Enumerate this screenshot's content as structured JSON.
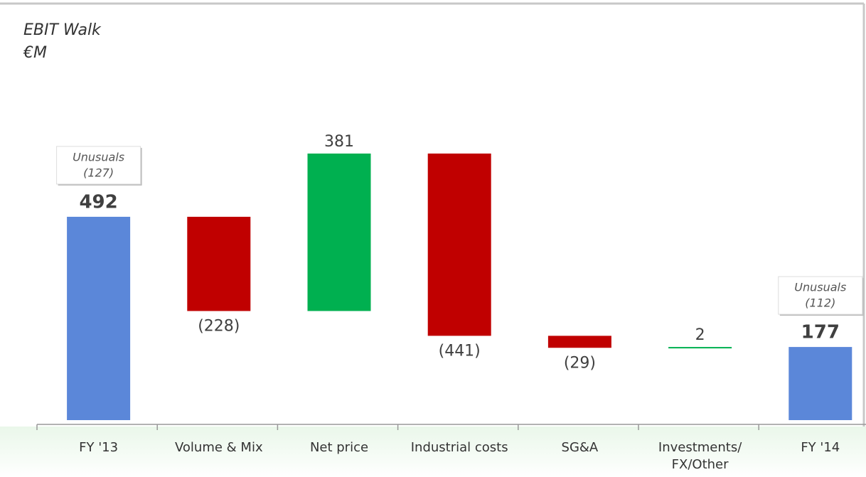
{
  "chart_data": {
    "type": "waterfall",
    "title": "EBIT Walk",
    "subtitle": "€M",
    "categories": [
      "FY '13",
      "Volume & Mix",
      "Net price",
      "Industrial costs",
      "SG&A",
      "Investments/ FX/Other",
      "FY '14"
    ],
    "values": [
      492,
      -228,
      381,
      -441,
      -29,
      2,
      177
    ],
    "value_labels": [
      "492",
      "(228)",
      "381",
      "(441)",
      "(29)",
      "2",
      "177"
    ],
    "total_color": "#5b87d9",
    "increase_color": "#00b050",
    "decrease_color": "#c00000",
    "annotations": [
      {
        "text": "Unusuals",
        "value": -127,
        "value_label": "(127)"
      },
      {
        "text": "Unusuals",
        "value": -112,
        "value_label": "(112)"
      }
    ]
  }
}
